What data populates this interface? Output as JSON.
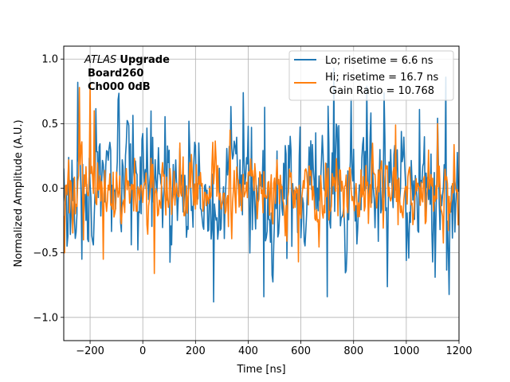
{
  "chart_data": {
    "type": "line",
    "title": "",
    "xlabel": "Time [ns]",
    "ylabel": "Normalized Amplitude (A.U.)",
    "xlim": [
      -300,
      1200
    ],
    "ylim": [
      -1.18,
      1.1
    ],
    "xticks": [
      -200,
      0,
      200,
      400,
      600,
      800,
      1000,
      1200
    ],
    "xtick_labels": [
      "−200",
      "0",
      "200",
      "400",
      "600",
      "800",
      "1000",
      "1200"
    ],
    "yticks": [
      -1.0,
      -0.5,
      0.0,
      0.5,
      1.0
    ],
    "ytick_labels": [
      "−1.0",
      "−0.5",
      "0.0",
      "0.5",
      "1.0"
    ],
    "grid": true,
    "legend_position": "top-right",
    "annotation": {
      "italic": "ATLAS",
      "bold": "Upgrade",
      "line2": "Board260",
      "line3": "Ch000 0dB"
    },
    "extra_legend_text": "Gain Ratio = 10.768",
    "series": [
      {
        "name": "Lo; risetime = 6.6 ns",
        "color": "#1f77b4",
        "x_start": -300,
        "x_step": 3.125,
        "count": 481,
        "mean": -0.02,
        "noise_sigma": 0.24,
        "seed": 17,
        "range": [
          -0.88,
          0.93
        ],
        "peaks": [
          [
            -246,
            0.82
          ],
          [
            -230,
            -0.55
          ],
          [
            270,
            -0.88
          ],
          [
            380,
            0.74
          ],
          [
            460,
            -0.84
          ],
          [
            565,
            -0.45
          ],
          [
            700,
            -0.84
          ],
          [
            725,
            0.93
          ],
          [
            790,
            0.69
          ],
          [
            850,
            0.79
          ],
          [
            915,
            0.74
          ],
          [
            1050,
            0.61
          ],
          [
            1150,
            0.86
          ]
        ]
      },
      {
        "name": "Hi; risetime = 16.7 ns",
        "color": "#ff7f0e",
        "x_start": -300,
        "x_step": 3.125,
        "count": 481,
        "mean": -0.02,
        "noise_sigma": 0.13,
        "seed": 101,
        "range": [
          -0.66,
          0.82
        ],
        "peaks": [
          [
            -296,
            -0.5
          ],
          [
            -240,
            0.78
          ],
          [
            -225,
            -0.4
          ],
          [
            -200,
            0.81
          ],
          [
            -185,
            0.6
          ],
          [
            -150,
            -0.55
          ],
          [
            45,
            -0.66
          ],
          [
            140,
            0.35
          ],
          [
            330,
            0.45
          ],
          [
            590,
            -0.57
          ],
          [
            960,
            0.49
          ],
          [
            1120,
            0.5
          ]
        ]
      }
    ]
  }
}
